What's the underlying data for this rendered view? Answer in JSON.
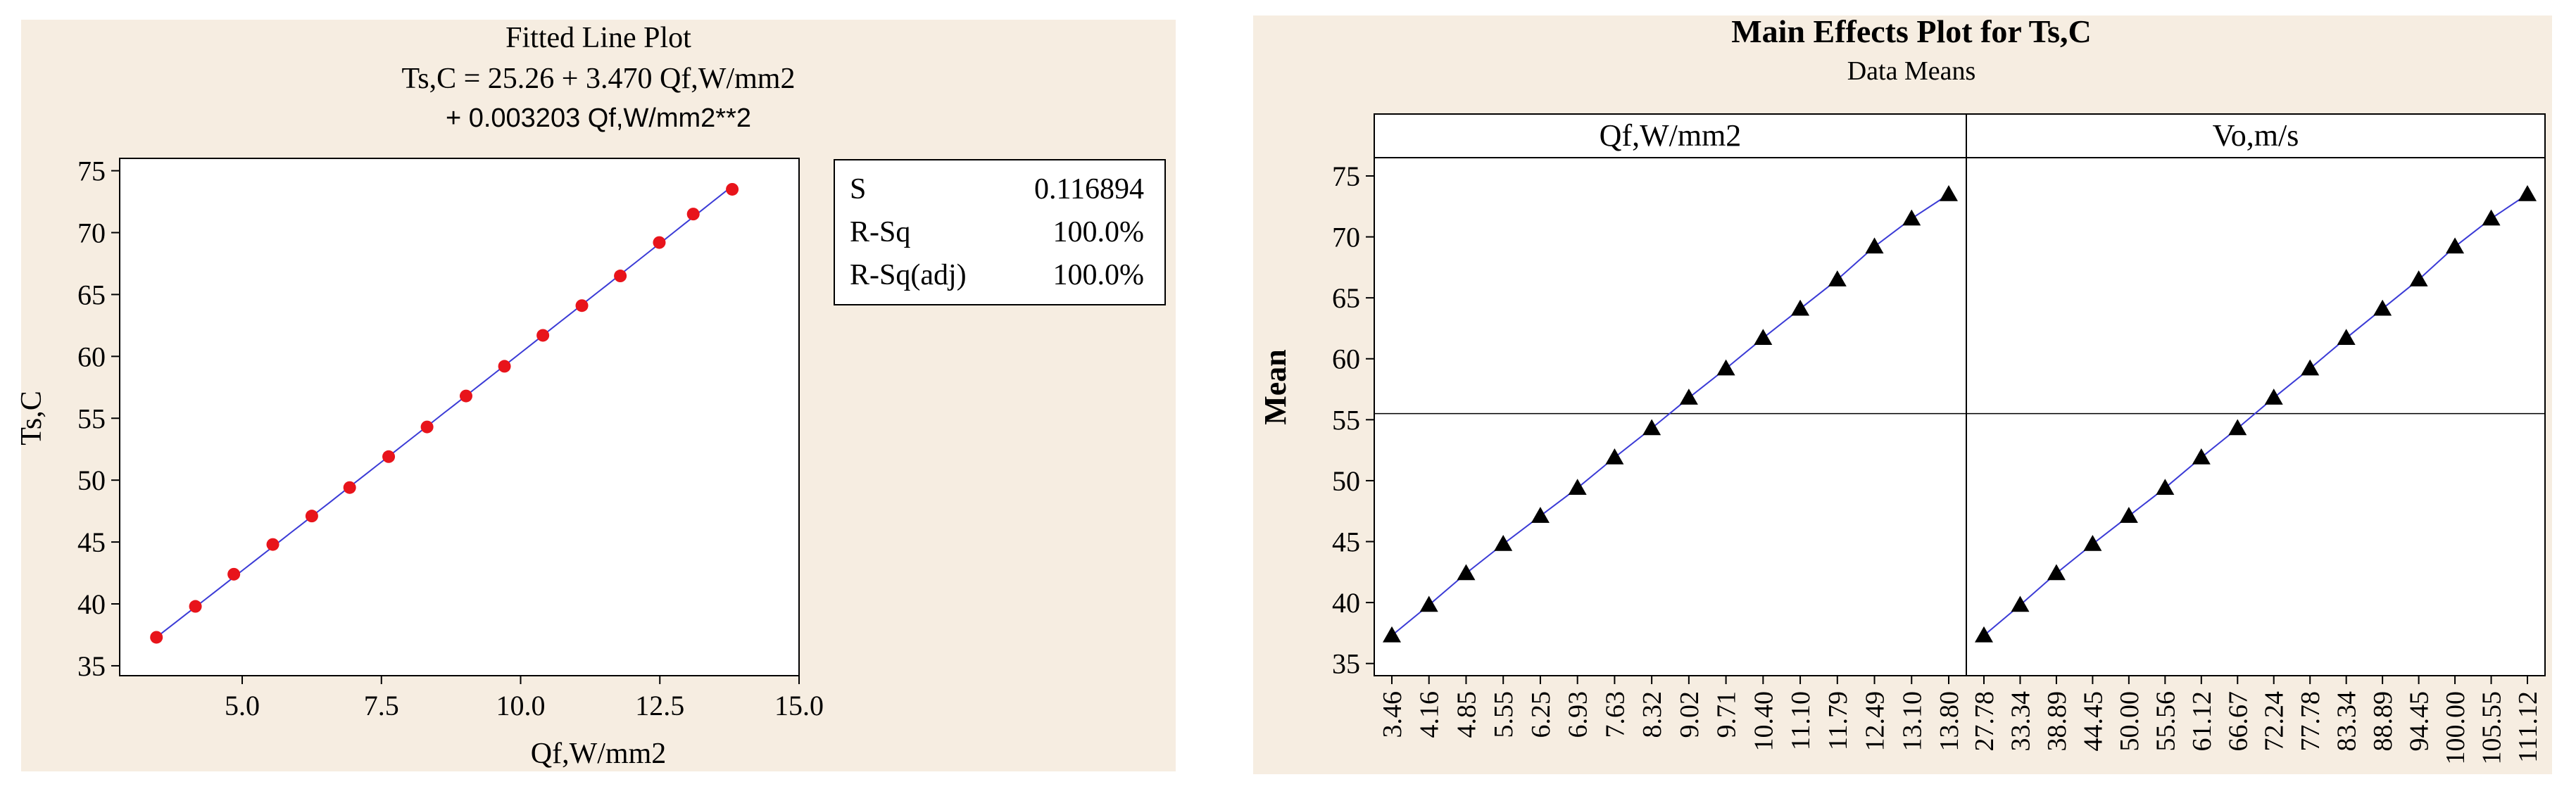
{
  "colors": {
    "panel_bg": "#f6ede1",
    "plot_bg": "#ffffff",
    "fit_line": "#3b3bd6",
    "point_red": "#e8141b",
    "marker_black": "#000000",
    "axis": "#000000"
  },
  "left": {
    "title": "Fitted Line Plot",
    "equation_line1": "Ts,C =  25.26 + 3.470 Qf,W/mm2",
    "equation_line2": "+ 0.003203 Qf,W/mm2**2",
    "stats": [
      {
        "label": "S",
        "value": "0.116894"
      },
      {
        "label": "R-Sq",
        "value": "100.0%"
      },
      {
        "label": "R-Sq(adj)",
        "value": "100.0%"
      }
    ]
  },
  "right": {
    "title": "Main Effects Plot for Ts,C",
    "subtitle": "Data Means",
    "ylabel": "Mean"
  },
  "chart_data": [
    {
      "type": "scatter",
      "title": "Fitted Line Plot",
      "xlabel": "Qf,W/mm2",
      "ylabel": "Ts,C",
      "xlim": [
        2.8,
        15.0
      ],
      "ylim": [
        34.2,
        76.0
      ],
      "xticks": [
        5.0,
        7.5,
        10.0,
        12.5,
        15.0
      ],
      "xtick_labels": [
        "5.0",
        "7.5",
        "10.0",
        "12.5",
        "15.0"
      ],
      "yticks": [
        35,
        40,
        45,
        50,
        55,
        60,
        65,
        70,
        75
      ],
      "ytick_labels": [
        "35",
        "40",
        "45",
        "50",
        "55",
        "60",
        "65",
        "70",
        "75"
      ],
      "fit": {
        "intercept": 25.26,
        "b1": 3.47,
        "b2": 0.003203,
        "x_range": [
          3.46,
          13.8
        ]
      },
      "x": [
        3.46,
        4.16,
        4.85,
        5.55,
        6.25,
        6.93,
        7.63,
        8.32,
        9.02,
        9.71,
        10.4,
        11.1,
        11.79,
        12.49,
        13.1,
        13.8
      ],
      "y": [
        37.3,
        39.8,
        42.4,
        44.8,
        47.1,
        49.4,
        51.9,
        54.3,
        56.8,
        59.2,
        61.7,
        64.1,
        66.5,
        69.2,
        71.5,
        73.5
      ]
    },
    {
      "type": "line",
      "title": "Main Effects Plot for Ts,C",
      "subtitle": "Data Means",
      "ylabel": "Mean",
      "ylim": [
        34.0,
        76.5
      ],
      "yticks": [
        35,
        40,
        45,
        50,
        55,
        60,
        65,
        70,
        75
      ],
      "ytick_labels": [
        "35",
        "40",
        "45",
        "50",
        "55",
        "60",
        "65",
        "70",
        "75"
      ],
      "reference_mean": 55.5,
      "panels": [
        {
          "name": "Qf,W/mm2",
          "categories": [
            "3.46",
            "4.16",
            "4.85",
            "5.55",
            "6.25",
            "6.93",
            "7.63",
            "8.32",
            "9.02",
            "9.71",
            "10.40",
            "11.10",
            "11.79",
            "12.49",
            "13.10",
            "13.80"
          ],
          "values": [
            37.3,
            39.8,
            42.4,
            44.8,
            47.1,
            49.4,
            51.9,
            54.3,
            56.8,
            59.2,
            61.7,
            64.1,
            66.5,
            69.2,
            71.5,
            73.5
          ]
        },
        {
          "name": "Vo,m/s",
          "categories": [
            "27.78",
            "33.34",
            "38.89",
            "44.45",
            "50.00",
            "55.56",
            "61.12",
            "66.67",
            "72.24",
            "77.78",
            "83.34",
            "88.89",
            "94.45",
            "100.00",
            "105.55",
            "111.12"
          ],
          "values": [
            37.3,
            39.8,
            42.4,
            44.8,
            47.1,
            49.4,
            51.9,
            54.3,
            56.8,
            59.2,
            61.7,
            64.1,
            66.5,
            69.2,
            71.5,
            73.5
          ]
        }
      ]
    }
  ]
}
